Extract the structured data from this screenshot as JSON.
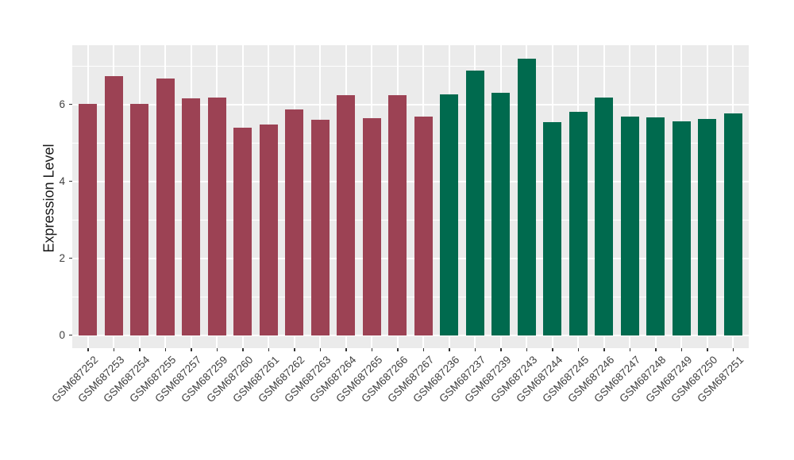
{
  "chart_data": {
    "type": "bar",
    "title": "",
    "xlabel": "",
    "ylabel": "Expression Level",
    "ylim": [
      0,
      7.53
    ],
    "yticks": [
      0,
      2,
      4,
      6
    ],
    "minor_gridlines": [
      1,
      3,
      5,
      7
    ],
    "grid": true,
    "legend": false,
    "panel_background": "#EBEBEB",
    "grid_color": "#FFFFFF",
    "axis_text_color": "#404040",
    "x_label_rotation_deg": 45,
    "categories": [
      "GSM687252",
      "GSM687253",
      "GSM687254",
      "GSM687255",
      "GSM687257",
      "GSM687259",
      "GSM687260",
      "GSM687261",
      "GSM687262",
      "GSM687263",
      "GSM687264",
      "GSM687265",
      "GSM687266",
      "GSM687267",
      "GSM687236",
      "GSM687237",
      "GSM687239",
      "GSM687243",
      "GSM687244",
      "GSM687245",
      "GSM687246",
      "GSM687247",
      "GSM687248",
      "GSM687249",
      "GSM687250",
      "GSM687251"
    ],
    "values": [
      6.01,
      6.74,
      6.01,
      6.67,
      6.15,
      6.18,
      5.39,
      5.48,
      5.88,
      5.61,
      6.24,
      5.64,
      6.24,
      5.69,
      6.26,
      6.88,
      6.31,
      7.18,
      5.54,
      5.8,
      6.18,
      5.68,
      5.66,
      5.56,
      5.63,
      5.76
    ],
    "colors": [
      "#9C4254",
      "#9C4254",
      "#9C4254",
      "#9C4254",
      "#9C4254",
      "#9C4254",
      "#9C4254",
      "#9C4254",
      "#9C4254",
      "#9C4254",
      "#9C4254",
      "#9C4254",
      "#9C4254",
      "#9C4254",
      "#006A4E",
      "#006A4E",
      "#006A4E",
      "#006A4E",
      "#006A4E",
      "#006A4E",
      "#006A4E",
      "#006A4E",
      "#006A4E",
      "#006A4E",
      "#006A4E",
      "#006A4E"
    ],
    "color_groups": [
      {
        "color": "#9C4254",
        "first_label": "GSM687252",
        "last_label": "GSM687267",
        "count": 14
      },
      {
        "color": "#006A4E",
        "first_label": "GSM687236",
        "last_label": "GSM687251",
        "count": 12
      }
    ]
  }
}
